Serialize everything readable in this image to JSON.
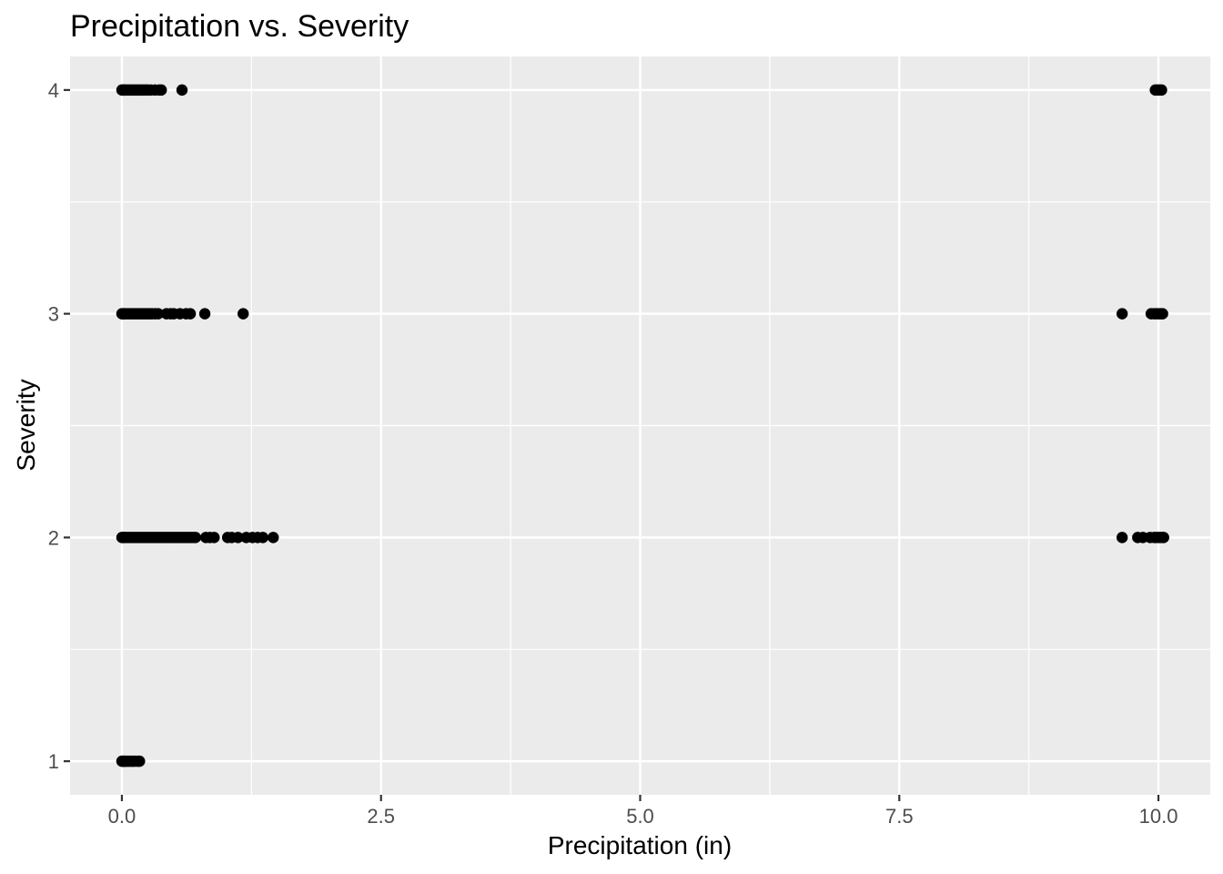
{
  "chart_data": {
    "type": "scatter",
    "title": "Precipitation vs. Severity",
    "xlabel": "Precipitation (in)",
    "ylabel": "Severity",
    "xlim": [
      -0.5,
      10.5
    ],
    "ylim": [
      0.85,
      4.15
    ],
    "x_ticks": [
      0.0,
      2.5,
      5.0,
      7.5,
      10.0
    ],
    "x_tick_labels": [
      "0.0",
      "2.5",
      "5.0",
      "7.5",
      "10.0"
    ],
    "x_minor_ticks": [
      1.25,
      3.75,
      6.25,
      8.75
    ],
    "y_ticks": [
      1,
      2,
      3,
      4
    ],
    "y_tick_labels": [
      "1",
      "2",
      "3",
      "4"
    ],
    "y_minor_ticks": [
      1.5,
      2.5,
      3.5
    ],
    "grid": true,
    "point_color": "#000000",
    "panel_color": "#ebebeb",
    "points": [
      {
        "x": 0.0,
        "y": 1
      },
      {
        "x": 0.01,
        "y": 1
      },
      {
        "x": 0.02,
        "y": 1
      },
      {
        "x": 0.03,
        "y": 1
      },
      {
        "x": 0.04,
        "y": 1
      },
      {
        "x": 0.06,
        "y": 1
      },
      {
        "x": 0.08,
        "y": 1
      },
      {
        "x": 0.1,
        "y": 1
      },
      {
        "x": 0.12,
        "y": 1
      },
      {
        "x": 0.15,
        "y": 1
      },
      {
        "x": 0.17,
        "y": 1
      },
      {
        "x": 0.0,
        "y": 2
      },
      {
        "x": 0.01,
        "y": 2
      },
      {
        "x": 0.02,
        "y": 2
      },
      {
        "x": 0.03,
        "y": 2
      },
      {
        "x": 0.05,
        "y": 2
      },
      {
        "x": 0.07,
        "y": 2
      },
      {
        "x": 0.09,
        "y": 2
      },
      {
        "x": 0.11,
        "y": 2
      },
      {
        "x": 0.13,
        "y": 2
      },
      {
        "x": 0.15,
        "y": 2
      },
      {
        "x": 0.17,
        "y": 2
      },
      {
        "x": 0.19,
        "y": 2
      },
      {
        "x": 0.21,
        "y": 2
      },
      {
        "x": 0.23,
        "y": 2
      },
      {
        "x": 0.25,
        "y": 2
      },
      {
        "x": 0.27,
        "y": 2
      },
      {
        "x": 0.29,
        "y": 2
      },
      {
        "x": 0.31,
        "y": 2
      },
      {
        "x": 0.33,
        "y": 2
      },
      {
        "x": 0.35,
        "y": 2
      },
      {
        "x": 0.37,
        "y": 2
      },
      {
        "x": 0.39,
        "y": 2
      },
      {
        "x": 0.41,
        "y": 2
      },
      {
        "x": 0.43,
        "y": 2
      },
      {
        "x": 0.45,
        "y": 2
      },
      {
        "x": 0.47,
        "y": 2
      },
      {
        "x": 0.49,
        "y": 2
      },
      {
        "x": 0.51,
        "y": 2
      },
      {
        "x": 0.53,
        "y": 2
      },
      {
        "x": 0.55,
        "y": 2
      },
      {
        "x": 0.57,
        "y": 2
      },
      {
        "x": 0.59,
        "y": 2
      },
      {
        "x": 0.61,
        "y": 2
      },
      {
        "x": 0.63,
        "y": 2
      },
      {
        "x": 0.65,
        "y": 2
      },
      {
        "x": 0.67,
        "y": 2
      },
      {
        "x": 0.69,
        "y": 2
      },
      {
        "x": 0.71,
        "y": 2
      },
      {
        "x": 0.81,
        "y": 2
      },
      {
        "x": 0.85,
        "y": 2
      },
      {
        "x": 0.89,
        "y": 2
      },
      {
        "x": 1.02,
        "y": 2
      },
      {
        "x": 1.06,
        "y": 2
      },
      {
        "x": 1.12,
        "y": 2
      },
      {
        "x": 1.2,
        "y": 2
      },
      {
        "x": 1.26,
        "y": 2
      },
      {
        "x": 1.31,
        "y": 2
      },
      {
        "x": 1.36,
        "y": 2
      },
      {
        "x": 1.46,
        "y": 2
      },
      {
        "x": 9.65,
        "y": 2
      },
      {
        "x": 9.8,
        "y": 2
      },
      {
        "x": 9.85,
        "y": 2
      },
      {
        "x": 9.92,
        "y": 2
      },
      {
        "x": 9.96,
        "y": 2
      },
      {
        "x": 9.98,
        "y": 2
      },
      {
        "x": 10.0,
        "y": 2
      },
      {
        "x": 10.02,
        "y": 2
      },
      {
        "x": 10.04,
        "y": 2
      },
      {
        "x": 10.05,
        "y": 2
      },
      {
        "x": 0.0,
        "y": 3
      },
      {
        "x": 0.01,
        "y": 3
      },
      {
        "x": 0.02,
        "y": 3
      },
      {
        "x": 0.03,
        "y": 3
      },
      {
        "x": 0.05,
        "y": 3
      },
      {
        "x": 0.07,
        "y": 3
      },
      {
        "x": 0.09,
        "y": 3
      },
      {
        "x": 0.11,
        "y": 3
      },
      {
        "x": 0.13,
        "y": 3
      },
      {
        "x": 0.15,
        "y": 3
      },
      {
        "x": 0.17,
        "y": 3
      },
      {
        "x": 0.19,
        "y": 3
      },
      {
        "x": 0.21,
        "y": 3
      },
      {
        "x": 0.23,
        "y": 3
      },
      {
        "x": 0.25,
        "y": 3
      },
      {
        "x": 0.27,
        "y": 3
      },
      {
        "x": 0.29,
        "y": 3
      },
      {
        "x": 0.32,
        "y": 3
      },
      {
        "x": 0.35,
        "y": 3
      },
      {
        "x": 0.43,
        "y": 3
      },
      {
        "x": 0.47,
        "y": 3
      },
      {
        "x": 0.5,
        "y": 3
      },
      {
        "x": 0.56,
        "y": 3
      },
      {
        "x": 0.62,
        "y": 3
      },
      {
        "x": 0.66,
        "y": 3
      },
      {
        "x": 0.8,
        "y": 3
      },
      {
        "x": 1.17,
        "y": 3
      },
      {
        "x": 9.65,
        "y": 3
      },
      {
        "x": 9.93,
        "y": 3
      },
      {
        "x": 9.96,
        "y": 3
      },
      {
        "x": 9.98,
        "y": 3
      },
      {
        "x": 10.0,
        "y": 3
      },
      {
        "x": 10.02,
        "y": 3
      },
      {
        "x": 10.04,
        "y": 3
      },
      {
        "x": 0.0,
        "y": 4
      },
      {
        "x": 0.01,
        "y": 4
      },
      {
        "x": 0.02,
        "y": 4
      },
      {
        "x": 0.03,
        "y": 4
      },
      {
        "x": 0.05,
        "y": 4
      },
      {
        "x": 0.07,
        "y": 4
      },
      {
        "x": 0.09,
        "y": 4
      },
      {
        "x": 0.11,
        "y": 4
      },
      {
        "x": 0.13,
        "y": 4
      },
      {
        "x": 0.15,
        "y": 4
      },
      {
        "x": 0.17,
        "y": 4
      },
      {
        "x": 0.19,
        "y": 4
      },
      {
        "x": 0.21,
        "y": 4
      },
      {
        "x": 0.23,
        "y": 4
      },
      {
        "x": 0.25,
        "y": 4
      },
      {
        "x": 0.28,
        "y": 4
      },
      {
        "x": 0.32,
        "y": 4
      },
      {
        "x": 0.36,
        "y": 4
      },
      {
        "x": 0.38,
        "y": 4
      },
      {
        "x": 0.58,
        "y": 4
      },
      {
        "x": 9.97,
        "y": 4
      },
      {
        "x": 9.99,
        "y": 4
      },
      {
        "x": 10.01,
        "y": 4
      },
      {
        "x": 10.03,
        "y": 4
      }
    ]
  }
}
